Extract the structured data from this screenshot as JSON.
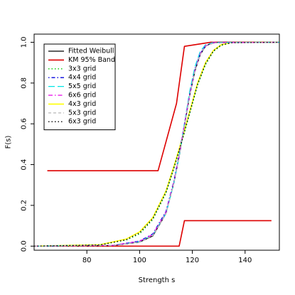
{
  "chart_data": {
    "type": "line",
    "title": "",
    "xlabel": "Strength s",
    "ylabel": "F(s)",
    "xlim": [
      60,
      153
    ],
    "ylim": [
      -0.02,
      1.04
    ],
    "xticks": [
      80,
      100,
      120,
      140
    ],
    "yticks": [
      0.0,
      0.2,
      0.4,
      0.6,
      0.8,
      1.0
    ],
    "xtick_labels": [
      "80",
      "100",
      "120",
      "140"
    ],
    "ytick_labels": [
      "0.0",
      "0.2",
      "0.4",
      "0.6",
      "0.8",
      "1.0"
    ],
    "grid": false,
    "legend_position": "top-left",
    "series": [
      {
        "name": "Fitted Weibull",
        "color": "#000000",
        "dash": "solid",
        "x": [
          60,
          90,
          100,
          105,
          110,
          113,
          115,
          117,
          119,
          121,
          123,
          125,
          127,
          130,
          153
        ],
        "y": [
          0.0,
          0.003,
          0.02,
          0.05,
          0.16,
          0.31,
          0.44,
          0.59,
          0.74,
          0.86,
          0.94,
          0.98,
          0.995,
          1.0,
          1.0
        ]
      },
      {
        "name": "KM 95% Band",
        "color": "#dd0000",
        "dash": "solid",
        "x": [
          65,
          107,
          114,
          117,
          127,
          150
        ],
        "y": [
          0.37,
          0.37,
          0.7,
          0.98,
          1.0,
          1.0
        ]
      },
      {
        "name": "",
        "color": "#dd0000",
        "dash": "solid",
        "x": [
          65,
          115,
          117,
          150
        ],
        "y": [
          0.0,
          0.0,
          0.125,
          0.125
        ]
      },
      {
        "name": "3x3 grid",
        "color": "#00cc00",
        "dash": "dotted",
        "x": [
          60,
          85,
          95,
          100,
          105,
          110,
          113,
          116,
          119,
          122,
          125,
          128,
          131,
          135,
          153
        ],
        "y": [
          0.0,
          0.006,
          0.03,
          0.06,
          0.13,
          0.26,
          0.38,
          0.51,
          0.65,
          0.79,
          0.89,
          0.955,
          0.985,
          0.998,
          1.0
        ]
      },
      {
        "name": "4x4 grid",
        "color": "#0000dd",
        "dash": "dashdot",
        "x": [
          60,
          90,
          100,
          105,
          110,
          113,
          115,
          117,
          119,
          121,
          123,
          125,
          128,
          153
        ],
        "y": [
          0.0,
          0.004,
          0.025,
          0.06,
          0.17,
          0.32,
          0.45,
          0.6,
          0.75,
          0.87,
          0.945,
          0.982,
          0.998,
          1.0
        ]
      },
      {
        "name": "5x5 grid",
        "color": "#00e5e5",
        "dash": "longdash",
        "x": [
          60,
          90,
          100,
          105,
          110,
          113,
          115,
          117,
          119,
          121,
          123,
          125,
          128,
          153
        ],
        "y": [
          0.0,
          0.004,
          0.022,
          0.055,
          0.16,
          0.31,
          0.44,
          0.6,
          0.76,
          0.88,
          0.955,
          0.988,
          0.999,
          1.0
        ]
      },
      {
        "name": "6x6 grid",
        "color": "#e600e6",
        "dash": "dashdot2",
        "x": [
          60,
          90,
          100,
          105,
          110,
          113,
          115,
          117,
          119,
          121,
          123,
          125,
          128,
          153
        ],
        "y": [
          0.0,
          0.004,
          0.024,
          0.057,
          0.165,
          0.315,
          0.445,
          0.595,
          0.745,
          0.865,
          0.945,
          0.983,
          0.998,
          1.0
        ]
      },
      {
        "name": "4x3 grid",
        "color": "#ffff00",
        "dash": "solid",
        "x": [
          60,
          85,
          95,
          100,
          105,
          110,
          113,
          116,
          119,
          122,
          125,
          128,
          131,
          135,
          153
        ],
        "y": [
          0.0,
          0.007,
          0.035,
          0.07,
          0.14,
          0.27,
          0.39,
          0.52,
          0.66,
          0.8,
          0.9,
          0.96,
          0.988,
          0.999,
          1.0
        ]
      },
      {
        "name": "5x3 grid",
        "color": "#bebebe",
        "dash": "dashed",
        "x": [
          60,
          90,
          100,
          105,
          110,
          113,
          115,
          117,
          119,
          121,
          123,
          125,
          128,
          153
        ],
        "y": [
          0.0,
          0.003,
          0.02,
          0.052,
          0.16,
          0.31,
          0.44,
          0.59,
          0.74,
          0.86,
          0.94,
          0.98,
          0.996,
          1.0
        ]
      },
      {
        "name": "6x3 grid",
        "color": "#000000",
        "dash": "dotted",
        "x": [
          60,
          85,
          95,
          100,
          105,
          110,
          113,
          116,
          119,
          122,
          125,
          128,
          131,
          135,
          153
        ],
        "y": [
          0.0,
          0.006,
          0.032,
          0.065,
          0.135,
          0.265,
          0.385,
          0.515,
          0.655,
          0.795,
          0.895,
          0.958,
          0.987,
          0.998,
          1.0
        ]
      }
    ]
  }
}
